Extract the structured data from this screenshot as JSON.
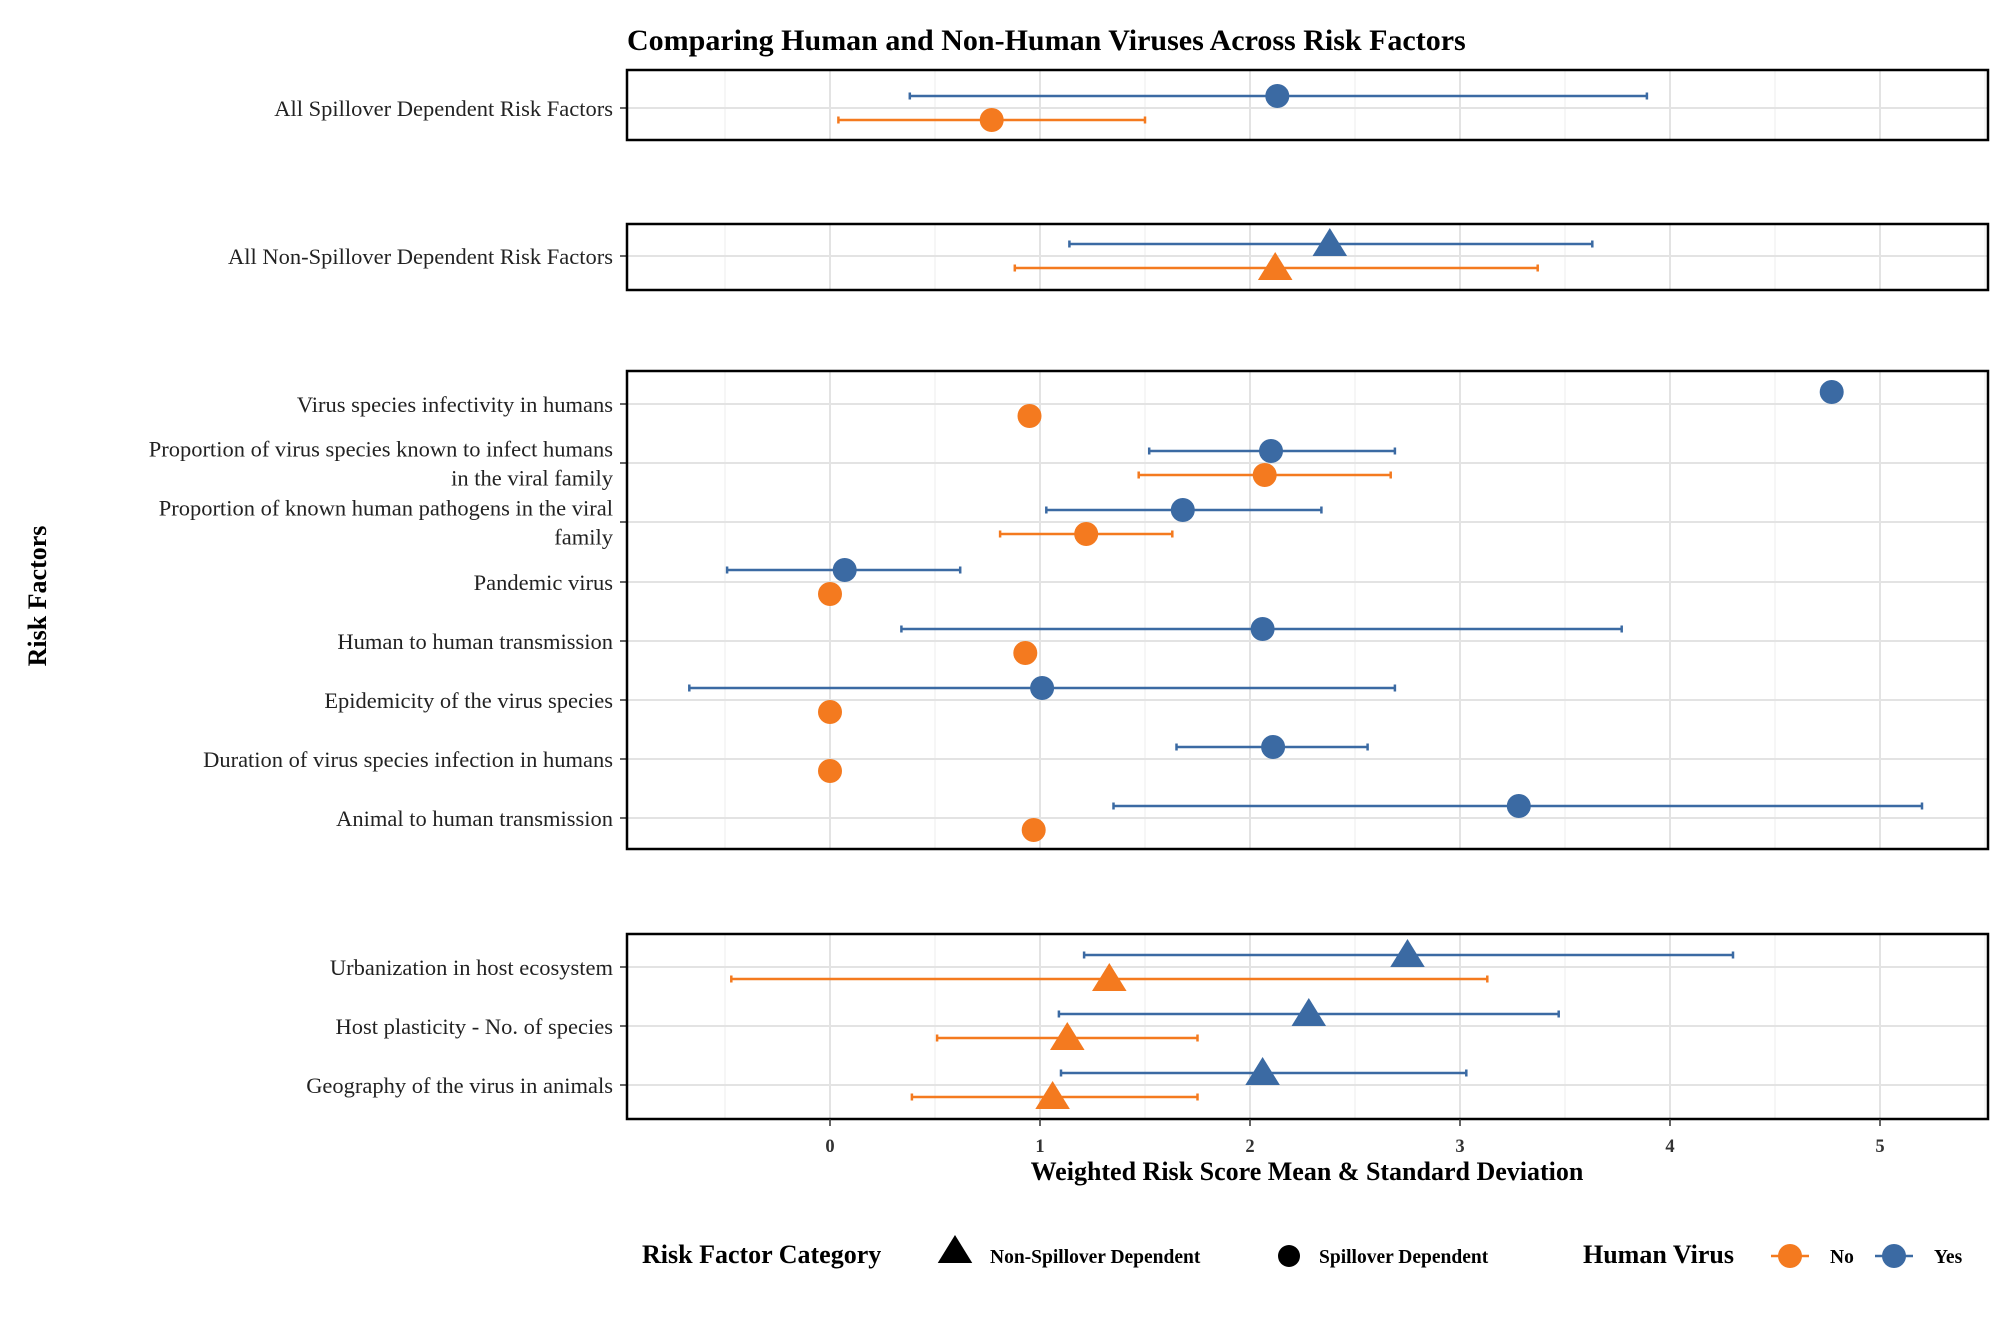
{
  "chart_data": {
    "type": "scatter",
    "title": "Comparing Human and Non-Human Viruses Across Risk Factors",
    "xlabel": "Weighted Risk Score Mean & Standard Deviation",
    "ylabel": "Risk Factors",
    "xlim": [
      -1,
      5.5
    ],
    "x_ticks": [
      "0",
      "1",
      "2",
      "3",
      "4",
      "5"
    ],
    "grid": true,
    "legend_position": "bottom",
    "colors": {
      "No": "#F47A1F",
      "Yes": "#3B6AA3"
    },
    "legend": {
      "shape_title": "Risk Factor Category",
      "shape_items": [
        {
          "label": "Non-Spillover Dependent",
          "shape": "triangle"
        },
        {
          "label": "Spillover Dependent",
          "shape": "circle"
        }
      ],
      "color_title": "Human Virus",
      "color_items": [
        {
          "label": "No",
          "group": "No"
        },
        {
          "label": "Yes",
          "group": "Yes"
        }
      ]
    },
    "panels": [
      {
        "rows": [
          {
            "label": [
              "All Spillover Dependent Risk Factors"
            ],
            "shape": "circle",
            "Yes": {
              "mean": 2.13,
              "lo": 0.38,
              "hi": 3.89
            },
            "No": {
              "mean": 0.77,
              "lo": 0.04,
              "hi": 1.5
            }
          }
        ]
      },
      {
        "rows": [
          {
            "label": [
              "All Non-Spillover Dependent Risk Factors"
            ],
            "shape": "triangle",
            "Yes": {
              "mean": 2.38,
              "lo": 1.14,
              "hi": 3.63
            },
            "No": {
              "mean": 2.12,
              "lo": 0.88,
              "hi": 3.37
            }
          }
        ]
      },
      {
        "rows": [
          {
            "label": [
              "Virus species infectivity in humans"
            ],
            "shape": "circle",
            "Yes": {
              "mean": 4.77,
              "lo": null,
              "hi": null
            },
            "No": {
              "mean": 0.95,
              "lo": null,
              "hi": null
            }
          },
          {
            "label": [
              "Proportion of virus species known to infect humans",
              "in the viral family"
            ],
            "shape": "circle",
            "Yes": {
              "mean": 2.1,
              "lo": 1.52,
              "hi": 2.69
            },
            "No": {
              "mean": 2.07,
              "lo": 1.47,
              "hi": 2.67
            }
          },
          {
            "label": [
              "Proportion of known human pathogens in the viral",
              "family"
            ],
            "shape": "circle",
            "Yes": {
              "mean": 1.68,
              "lo": 1.03,
              "hi": 2.34
            },
            "No": {
              "mean": 1.22,
              "lo": 0.81,
              "hi": 1.63
            }
          },
          {
            "label": [
              "Pandemic virus"
            ],
            "shape": "circle",
            "Yes": {
              "mean": 0.07,
              "lo": -0.49,
              "hi": 0.62
            },
            "No": {
              "mean": 0.0,
              "lo": null,
              "hi": null
            }
          },
          {
            "label": [
              "Human to human transmission"
            ],
            "shape": "circle",
            "Yes": {
              "mean": 2.06,
              "lo": 0.34,
              "hi": 3.77
            },
            "No": {
              "mean": 0.93,
              "lo": null,
              "hi": null
            }
          },
          {
            "label": [
              "Epidemicity of the virus species"
            ],
            "shape": "circle",
            "Yes": {
              "mean": 1.01,
              "lo": -0.67,
              "hi": 2.69
            },
            "No": {
              "mean": 0.0,
              "lo": null,
              "hi": null
            }
          },
          {
            "label": [
              "Duration of virus species infection in humans"
            ],
            "shape": "circle",
            "Yes": {
              "mean": 2.11,
              "lo": 1.65,
              "hi": 2.56
            },
            "No": {
              "mean": 0.0,
              "lo": null,
              "hi": null
            }
          },
          {
            "label": [
              "Animal to human transmission"
            ],
            "shape": "circle",
            "Yes": {
              "mean": 3.28,
              "lo": 1.35,
              "hi": 5.2
            },
            "No": {
              "mean": 0.97,
              "lo": null,
              "hi": null
            }
          }
        ]
      },
      {
        "rows": [
          {
            "label": [
              "Urbanization in host ecosystem"
            ],
            "shape": "triangle",
            "Yes": {
              "mean": 2.75,
              "lo": 1.21,
              "hi": 4.3
            },
            "No": {
              "mean": 1.33,
              "lo": -0.47,
              "hi": 3.13
            }
          },
          {
            "label": [
              "Host plasticity - No. of species"
            ],
            "shape": "triangle",
            "Yes": {
              "mean": 2.28,
              "lo": 1.09,
              "hi": 3.47
            },
            "No": {
              "mean": 1.13,
              "lo": 0.51,
              "hi": 1.75
            }
          },
          {
            "label": [
              "Geography of the virus in animals"
            ],
            "shape": "triangle",
            "Yes": {
              "mean": 2.06,
              "lo": 1.1,
              "hi": 3.03
            },
            "No": {
              "mean": 1.06,
              "lo": 0.39,
              "hi": 1.75
            }
          }
        ]
      }
    ]
  }
}
